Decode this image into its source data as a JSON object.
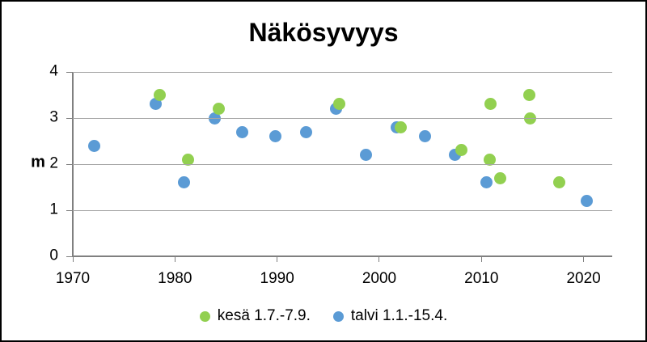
{
  "window": {
    "background_color": "#ffffff",
    "frame_color": "#000000"
  },
  "colors": {
    "gridline": "#a6a6a6",
    "axis": "#808080",
    "text": "#000000",
    "summer_green": "#92d050",
    "winter_blue": "#5b9bd5"
  },
  "chart_data": {
    "type": "scatter",
    "title": "Näkösyvyys",
    "xlabel": "",
    "ylabel": "m",
    "xlim": [
      1970,
      2022.8
    ],
    "ylim": [
      0,
      4
    ],
    "x_ticks": [
      1970,
      1980,
      1990,
      2000,
      2010,
      2020
    ],
    "y_ticks": [
      0,
      1,
      2,
      3,
      4
    ],
    "grid": "horizontal-only",
    "legend_position": "bottom-center",
    "series": [
      {
        "name": "kesä 1.7.-7.9.",
        "color": "#92d050",
        "points": [
          [
            1978.5,
            3.5
          ],
          [
            1981.3,
            2.1
          ],
          [
            1984.3,
            3.2
          ],
          [
            1996.1,
            3.3
          ],
          [
            2002.1,
            2.8
          ],
          [
            2008.0,
            2.3
          ],
          [
            2010.8,
            2.1
          ],
          [
            2010.9,
            3.3
          ],
          [
            2011.8,
            1.7
          ],
          [
            2014.7,
            3.5
          ],
          [
            2014.8,
            3.0
          ],
          [
            2017.6,
            1.6
          ]
        ]
      },
      {
        "name": "talvi 1.1.-15.4.",
        "color": "#5b9bd5",
        "points": [
          [
            1972.1,
            2.4
          ],
          [
            1978.1,
            3.3
          ],
          [
            1980.9,
            1.6
          ],
          [
            1983.9,
            3.0
          ],
          [
            1986.6,
            2.7
          ],
          [
            1989.8,
            2.6
          ],
          [
            1992.8,
            2.7
          ],
          [
            1995.8,
            3.2
          ],
          [
            1998.7,
            2.2
          ],
          [
            2001.7,
            2.8
          ],
          [
            2004.5,
            2.6
          ],
          [
            2007.4,
            2.2
          ],
          [
            2010.5,
            1.6
          ],
          [
            2020.3,
            1.2
          ]
        ]
      }
    ]
  }
}
